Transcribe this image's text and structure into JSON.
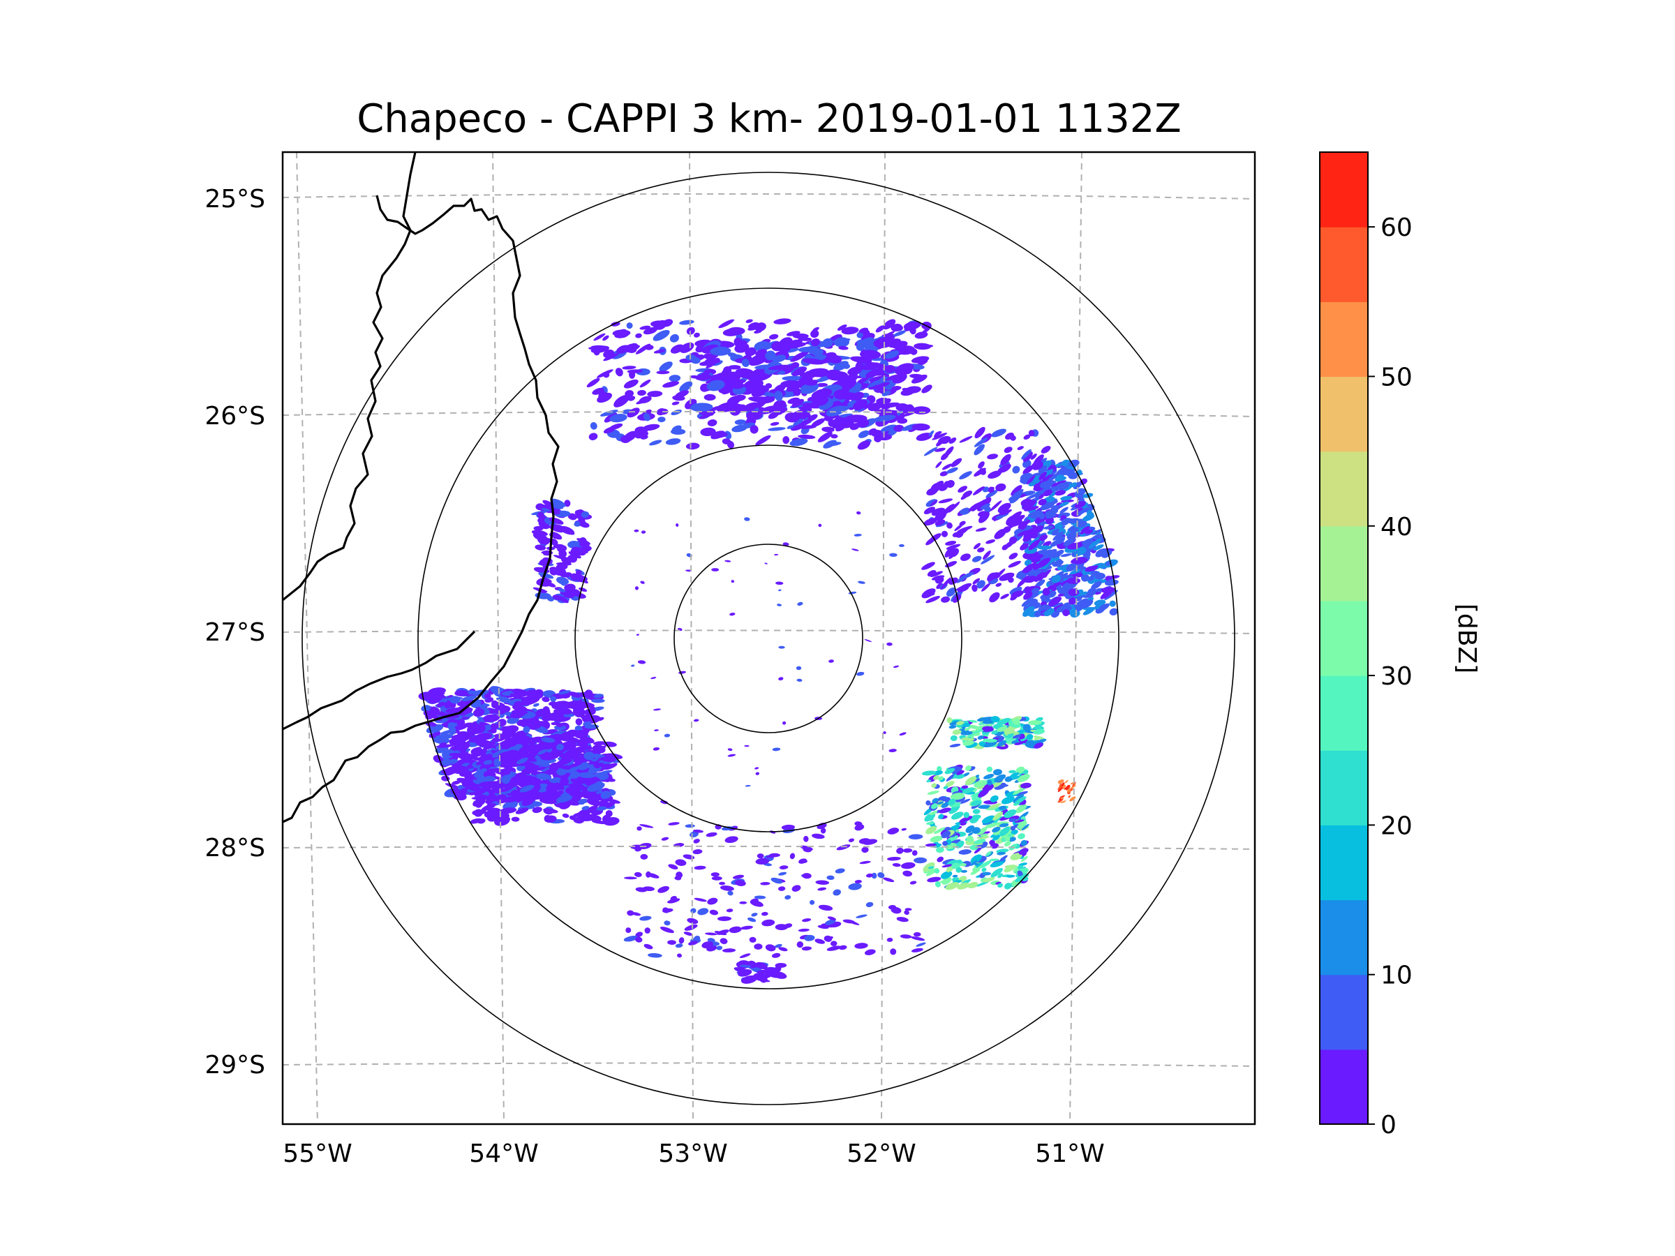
{
  "title": "Chapeco - CAPPI 3 km- 2019-01-01 1132Z",
  "map": {
    "lon_labels": [
      "55°W",
      "54°W",
      "53°W",
      "52°W",
      "51°W"
    ],
    "lat_labels": [
      "25°S",
      "26°S",
      "27°S",
      "28°S",
      "29°S"
    ],
    "range_ring_count": 4,
    "border_color": "#000000",
    "gridline_color": "#b0b0b0"
  },
  "colorbar": {
    "label": "[dBZ]",
    "tick_labels": [
      "0",
      "10",
      "20",
      "30",
      "40",
      "50",
      "60"
    ],
    "bin_colors": [
      "#6a1bff",
      "#3f5cf5",
      "#1a8ee8",
      "#08bfe0",
      "#2fdfcf",
      "#55f5bf",
      "#7cfcaa",
      "#a5f295",
      "#cde082",
      "#f0c06a",
      "#ff9048",
      "#ff5a2d",
      "#ff2414"
    ]
  },
  "echo_regions": [
    {
      "area": "north band",
      "reflectivity_dbz": "0-10"
    },
    {
      "area": "northeast cluster",
      "reflectivity_dbz": "0-15"
    },
    {
      "area": "west cluster",
      "reflectivity_dbz": "0-10"
    },
    {
      "area": "southeast cluster",
      "reflectivity_dbz": "10-35"
    },
    {
      "area": "east cell",
      "reflectivity_dbz": "55-65"
    }
  ]
}
